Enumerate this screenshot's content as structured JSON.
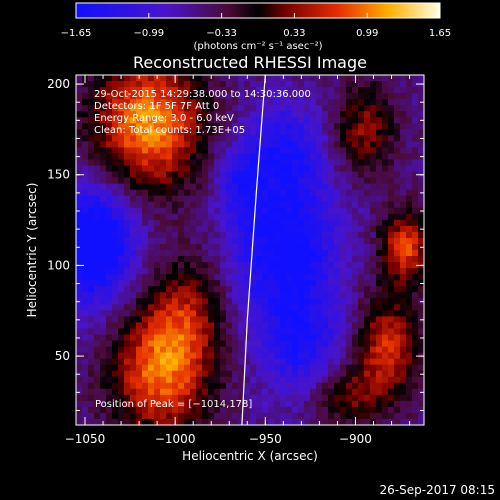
{
  "chart_data": {
    "type": "heatmap",
    "title": "Reconstructed RHESSI Image",
    "xlabel": "Heliocentric X (arcsec)",
    "ylabel": "Heliocentric Y (arcsec)",
    "xlim": [
      -1055,
      -862
    ],
    "ylim": [
      12,
      205
    ],
    "x_ticks": [
      -1050,
      -1000,
      -950,
      -900
    ],
    "y_ticks": [
      50,
      100,
      150,
      200
    ],
    "x_tick_labels": [
      "−1050",
      "−1000",
      "−950",
      "−900"
    ],
    "y_tick_labels": [
      "50",
      "100",
      "150",
      "200"
    ],
    "colorbar": {
      "range": [
        -1.65,
        1.65
      ],
      "ticks": [
        -1.65,
        -0.99,
        -0.33,
        0.33,
        0.99,
        1.65
      ],
      "tick_labels": [
        "−1.65",
        "−0.99",
        "−0.33",
        "0.33",
        "0.99",
        "1.65"
      ],
      "unit_label": "(photons cm⁻² s⁻¹ asec⁻²)"
    },
    "annotations": [
      "29-Oct-2015 14:29:38.000 to 14:30:36.000",
      "Detectors: 1F 5F 7F Att 0",
      "Energy Range: 3.0 - 6.0 keV",
      "Clean: Total counts: 1.73E+05"
    ],
    "peak_label": "Position of Peak = [−1014,178]",
    "peak": [
      -1014,
      178
    ],
    "limb_line": [
      [
        -963,
        12
      ],
      [
        -960,
        70
      ],
      [
        -955,
        140
      ],
      [
        -950,
        205
      ]
    ],
    "sources": [
      {
        "x": -1015,
        "y": 178,
        "amp": 1.65,
        "sx": 22,
        "sy": 26
      },
      {
        "x": -1008,
        "y": 40,
        "amp": 1.45,
        "sx": 20,
        "sy": 24
      },
      {
        "x": -995,
        "y": 75,
        "amp": 0.8,
        "sx": 16,
        "sy": 20
      },
      {
        "x": -895,
        "y": 175,
        "amp": 0.9,
        "sx": 12,
        "sy": 18
      },
      {
        "x": -872,
        "y": 110,
        "amp": 1.3,
        "sx": 10,
        "sy": 14
      },
      {
        "x": -882,
        "y": 55,
        "amp": 1.2,
        "sx": 12,
        "sy": 20
      },
      {
        "x": -905,
        "y": 28,
        "amp": 0.8,
        "sx": 14,
        "sy": 12
      },
      {
        "x": -960,
        "y": 110,
        "amp": -0.35,
        "sx": 10,
        "sy": 30
      }
    ],
    "holes": [
      {
        "x": -1045,
        "y": 112,
        "amp": -1.55,
        "sx": 16,
        "sy": 24
      },
      {
        "x": -935,
        "y": 110,
        "amp": -1.2,
        "sx": 18,
        "sy": 30
      },
      {
        "x": -940,
        "y": 165,
        "amp": -0.8,
        "sx": 16,
        "sy": 18
      },
      {
        "x": -965,
        "y": 145,
        "amp": -0.6,
        "sx": 10,
        "sy": 14
      },
      {
        "x": -930,
        "y": 55,
        "amp": -0.8,
        "sx": 16,
        "sy": 20
      }
    ],
    "baseline": -0.55
  },
  "footer": {
    "timestamp": "26-Sep-2017 08:15"
  }
}
